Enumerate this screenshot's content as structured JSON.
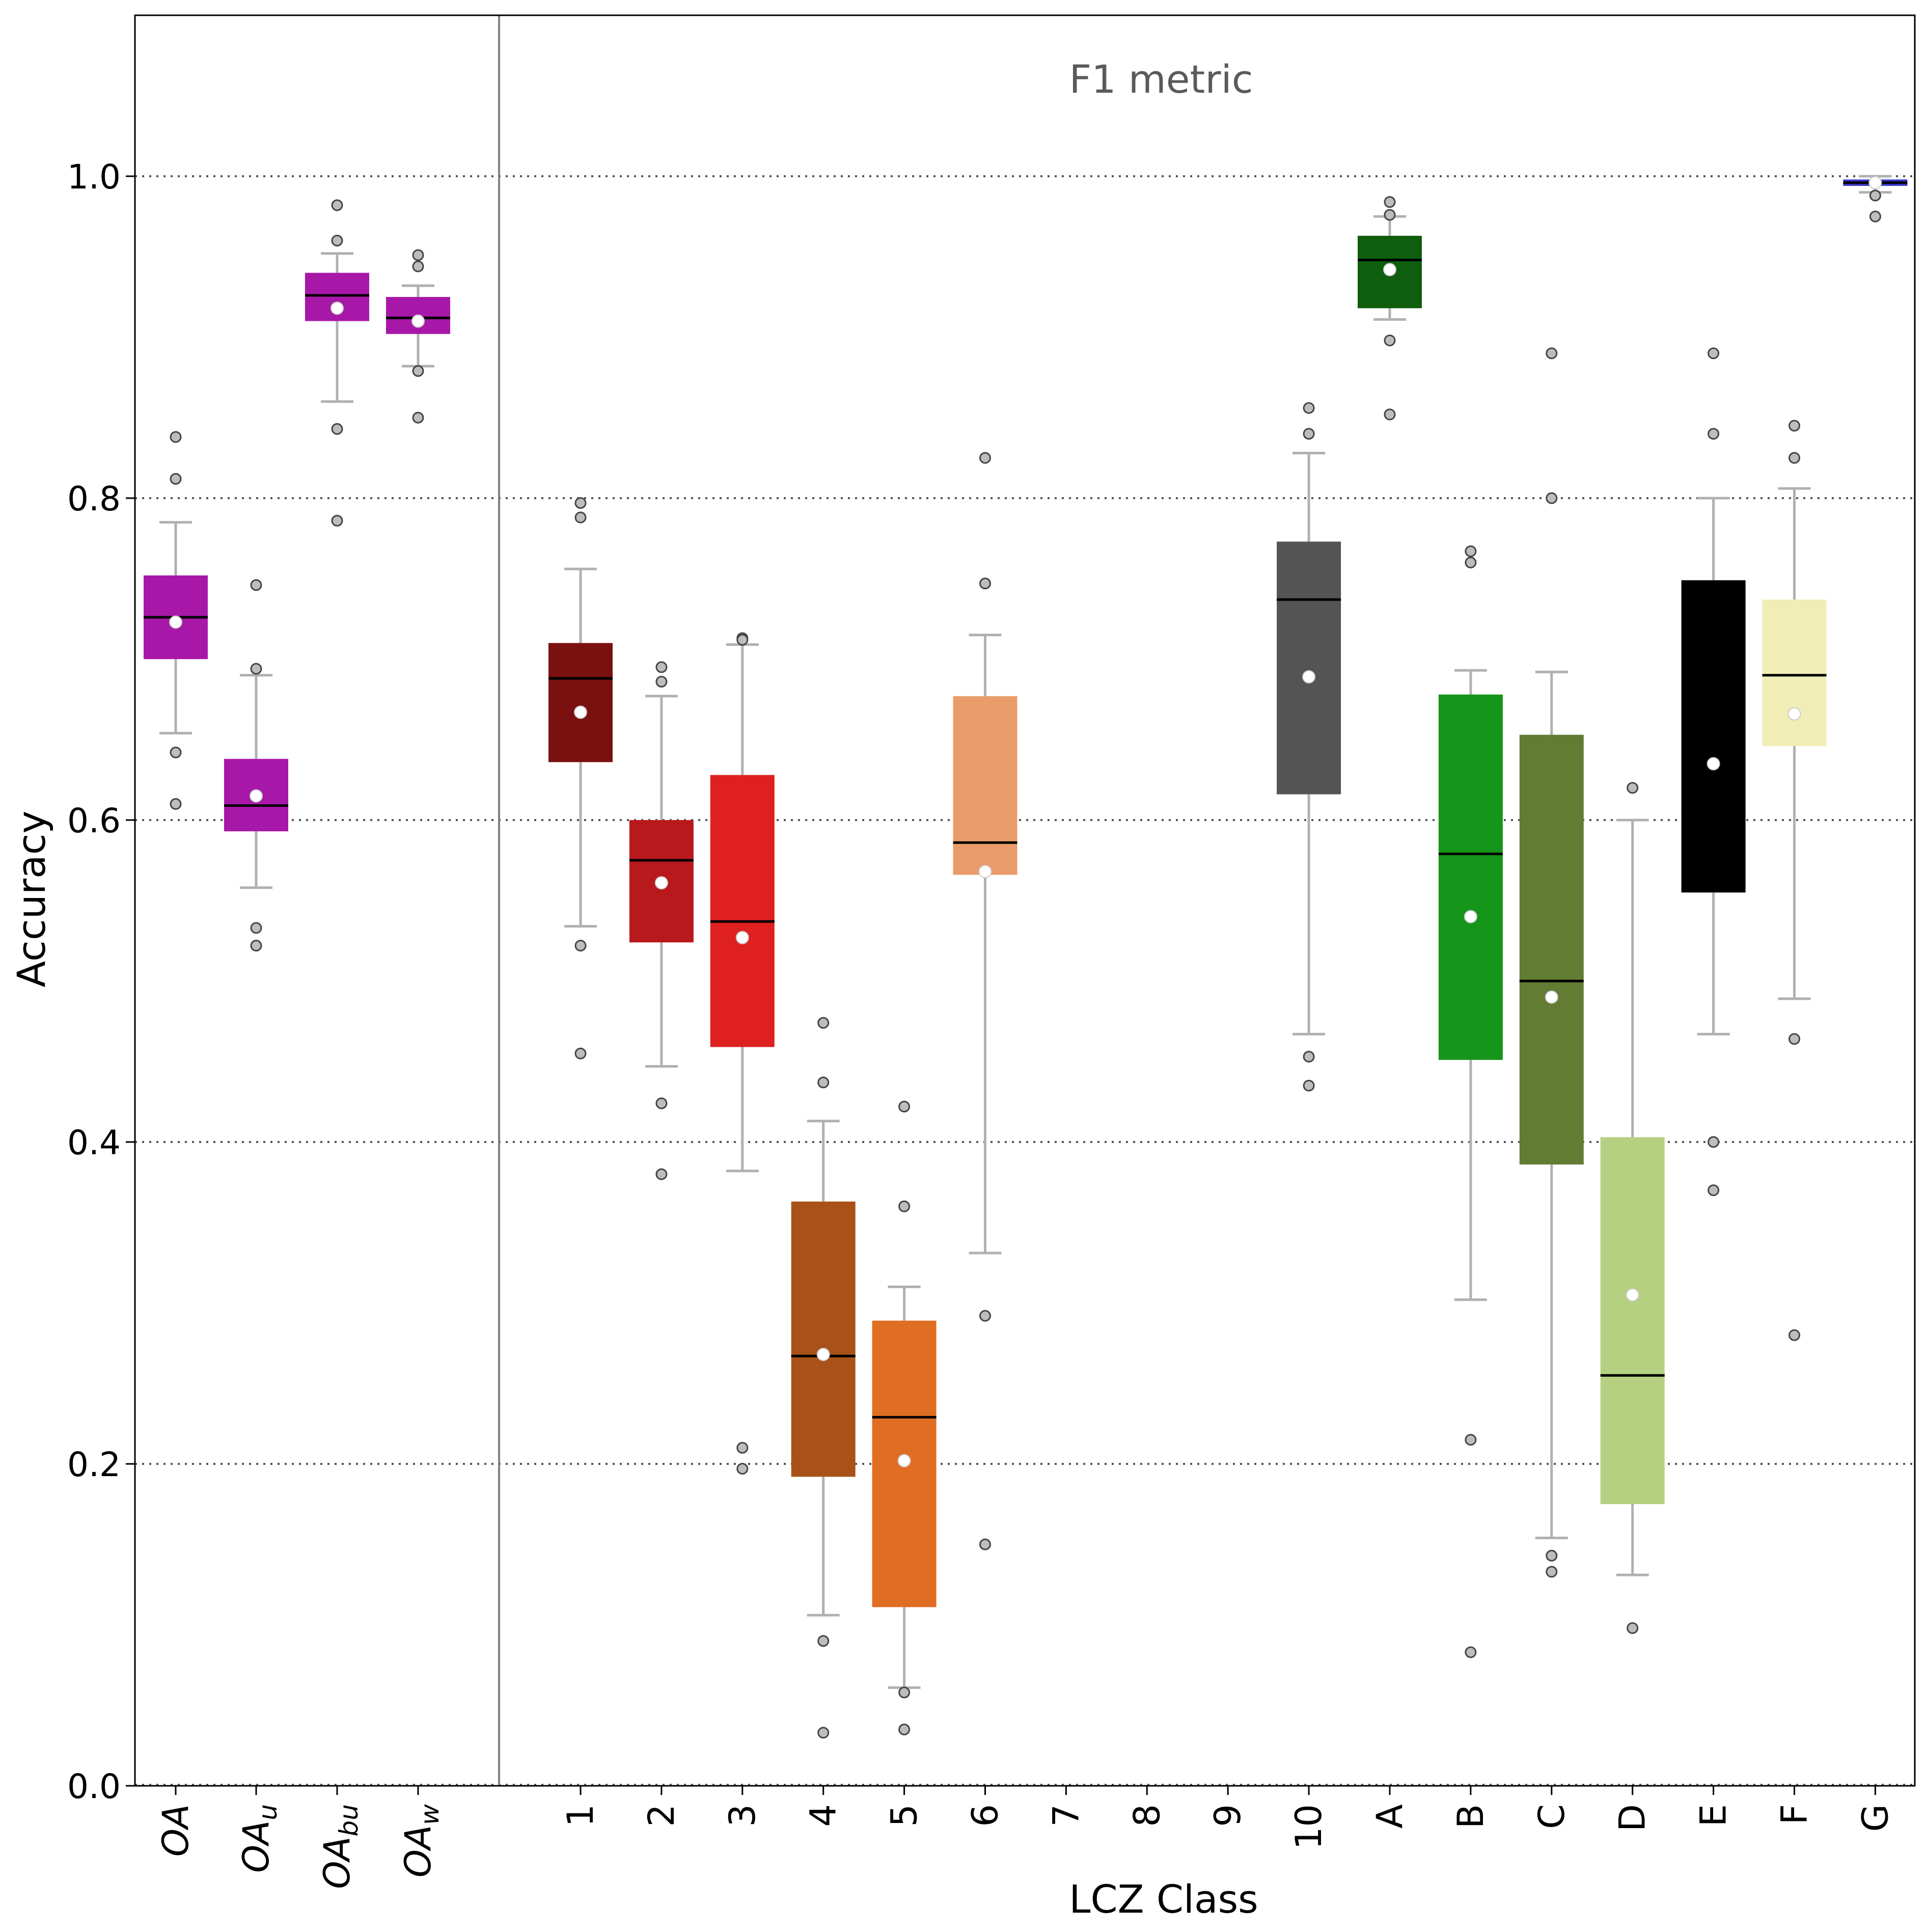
{
  "chart_data": {
    "type": "boxplot",
    "annotation": "F1 metric",
    "xlabel": "LCZ Class",
    "ylabel": "Accuracy",
    "ylim": [
      0.0,
      1.1
    ],
    "yticks": [
      0.0,
      0.2,
      0.4,
      0.6,
      0.8,
      1.0
    ],
    "ytick_labels": [
      "0.0",
      "0.2",
      "0.4",
      "0.6",
      "0.8",
      "1.0"
    ],
    "grid_lines": [
      0.2,
      0.4,
      0.6,
      0.8,
      1.0
    ],
    "overall_labels": [
      {
        "base": "OA",
        "sub": ""
      },
      {
        "base": "OA",
        "sub": "u"
      },
      {
        "base": "OA",
        "sub": "bu"
      },
      {
        "base": "OA",
        "sub": "w"
      }
    ],
    "boxes": [
      {
        "label": "OA",
        "group": "overall",
        "color": "#A818A8",
        "q1": 0.7,
        "median": 0.726,
        "q3": 0.752,
        "whislo": 0.654,
        "whishi": 0.785,
        "mean": 0.723,
        "outliers": [
          0.838,
          0.812,
          0.642,
          0.61
        ]
      },
      {
        "label": "OA_u",
        "group": "overall",
        "color": "#A818A8",
        "q1": 0.593,
        "median": 0.609,
        "q3": 0.638,
        "whislo": 0.558,
        "whishi": 0.69,
        "mean": 0.615,
        "outliers": [
          0.746,
          0.694,
          0.533,
          0.522
        ]
      },
      {
        "label": "OA_bu",
        "group": "overall",
        "color": "#A818A8",
        "q1": 0.91,
        "median": 0.926,
        "q3": 0.94,
        "whislo": 0.86,
        "whishi": 0.952,
        "mean": 0.918,
        "outliers": [
          0.982,
          0.96,
          0.843,
          0.786
        ]
      },
      {
        "label": "OA_w",
        "group": "overall",
        "color": "#A818A8",
        "q1": 0.902,
        "median": 0.912,
        "q3": 0.925,
        "whislo": 0.882,
        "whishi": 0.932,
        "mean": 0.91,
        "outliers": [
          0.951,
          0.944,
          0.879,
          0.85
        ]
      },
      {
        "label": "1",
        "group": "lcz",
        "color": "#7A1010",
        "q1": 0.636,
        "median": 0.688,
        "q3": 0.71,
        "whislo": 0.534,
        "whishi": 0.756,
        "mean": 0.667,
        "outliers": [
          0.797,
          0.788,
          0.522,
          0.455
        ]
      },
      {
        "label": "2",
        "group": "lcz",
        "color": "#B8191C",
        "q1": 0.524,
        "median": 0.575,
        "q3": 0.6,
        "whislo": 0.447,
        "whishi": 0.677,
        "mean": 0.561,
        "outliers": [
          0.695,
          0.686,
          0.424,
          0.38
        ]
      },
      {
        "label": "3",
        "group": "lcz",
        "color": "#DE2020",
        "q1": 0.459,
        "median": 0.537,
        "q3": 0.628,
        "whislo": 0.382,
        "whishi": 0.709,
        "mean": 0.527,
        "outliers": [
          0.713,
          0.712,
          0.21,
          0.197
        ]
      },
      {
        "label": "4",
        "group": "lcz",
        "color": "#A85219",
        "q1": 0.192,
        "median": 0.267,
        "q3": 0.363,
        "whislo": 0.106,
        "whishi": 0.413,
        "mean": 0.268,
        "outliers": [
          0.474,
          0.437,
          0.09,
          0.033
        ]
      },
      {
        "label": "5",
        "group": "lcz",
        "color": "#E06E22",
        "q1": 0.111,
        "median": 0.229,
        "q3": 0.289,
        "whislo": 0.061,
        "whishi": 0.31,
        "mean": 0.202,
        "outliers": [
          0.422,
          0.36,
          0.058,
          0.035
        ]
      },
      {
        "label": "6",
        "group": "lcz",
        "color": "#E99C6A",
        "q1": 0.566,
        "median": 0.586,
        "q3": 0.677,
        "whislo": 0.331,
        "whishi": 0.715,
        "mean": 0.568,
        "outliers": [
          0.825,
          0.747,
          0.292,
          0.15
        ]
      },
      {
        "label": "7",
        "group": "lcz",
        "color": "#000000",
        "empty": true
      },
      {
        "label": "8",
        "group": "lcz",
        "color": "#000000",
        "empty": true
      },
      {
        "label": "9",
        "group": "lcz",
        "color": "#000000",
        "empty": true
      },
      {
        "label": "10",
        "group": "lcz",
        "color": "#545454",
        "q1": 0.616,
        "median": 0.737,
        "q3": 0.773,
        "whislo": 0.467,
        "whishi": 0.828,
        "mean": 0.689,
        "outliers": [
          0.856,
          0.84,
          0.453,
          0.435
        ]
      },
      {
        "label": "A",
        "group": "lcz",
        "color": "#0E5E0E",
        "q1": 0.918,
        "median": 0.948,
        "q3": 0.963,
        "whislo": 0.911,
        "whishi": 0.975,
        "mean": 0.942,
        "outliers": [
          0.984,
          0.976,
          0.898,
          0.852
        ]
      },
      {
        "label": "B",
        "group": "lcz",
        "color": "#15951A",
        "q1": 0.451,
        "median": 0.579,
        "q3": 0.678,
        "whislo": 0.302,
        "whishi": 0.693,
        "mean": 0.54,
        "outliers": [
          0.767,
          0.76,
          0.215,
          0.083
        ]
      },
      {
        "label": "C",
        "group": "lcz",
        "color": "#627C34",
        "q1": 0.386,
        "median": 0.5,
        "q3": 0.653,
        "whislo": 0.154,
        "whishi": 0.692,
        "mean": 0.49,
        "outliers": [
          0.89,
          0.8,
          0.143,
          0.133
        ]
      },
      {
        "label": "D",
        "group": "lcz",
        "color": "#B6D082",
        "q1": 0.175,
        "median": 0.255,
        "q3": 0.403,
        "whislo": 0.131,
        "whishi": 0.6,
        "mean": 0.305,
        "outliers": [
          0.62,
          0.098
        ]
      },
      {
        "label": "E",
        "group": "lcz",
        "color": "#000000",
        "q1": 0.555,
        "median": 0.606,
        "q3": 0.749,
        "whislo": 0.467,
        "whishi": 0.8,
        "mean": 0.635,
        "outliers": [
          0.89,
          0.84,
          0.4,
          0.37
        ]
      },
      {
        "label": "F",
        "group": "lcz",
        "color": "#F1EDB6",
        "q1": 0.646,
        "median": 0.69,
        "q3": 0.737,
        "whislo": 0.489,
        "whishi": 0.806,
        "mean": 0.666,
        "outliers": [
          0.845,
          0.825,
          0.464,
          0.28
        ]
      },
      {
        "label": "G",
        "group": "lcz",
        "color": "#3838C8",
        "q1": 0.994,
        "median": 0.996,
        "q3": 0.998,
        "whislo": 0.99,
        "whishi": 1.0,
        "mean": 0.996,
        "outliers": [
          0.988,
          0.975
        ]
      }
    ]
  }
}
